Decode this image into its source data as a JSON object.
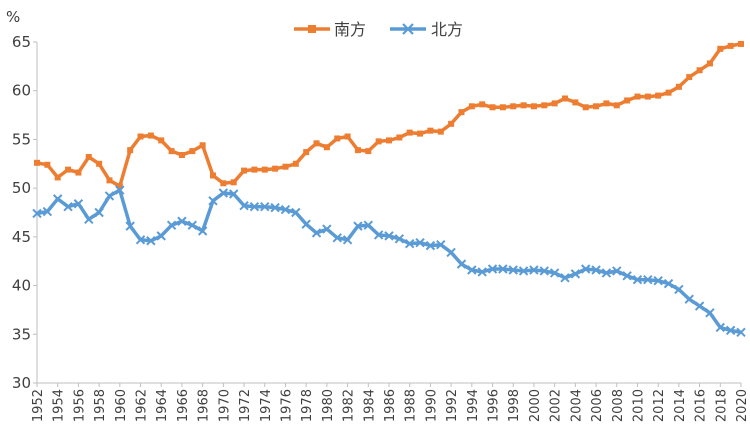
{
  "chart_data": {
    "type": "line",
    "title": "",
    "unit_label": "%",
    "xlabel": "",
    "ylabel": "",
    "ylim": [
      30,
      65
    ],
    "yticks": [
      30,
      35,
      40,
      45,
      50,
      55,
      60,
      65
    ],
    "xlim": [
      1952,
      2020
    ],
    "xticks": [
      1952,
      1954,
      1956,
      1958,
      1960,
      1962,
      1964,
      1966,
      1968,
      1970,
      1972,
      1974,
      1976,
      1978,
      1980,
      1982,
      1984,
      1986,
      1988,
      1990,
      1992,
      1994,
      1996,
      1998,
      2000,
      2002,
      2004,
      2006,
      2008,
      2010,
      2012,
      2014,
      2016,
      2018,
      2020
    ],
    "grid": false,
    "legend_position": "top-center",
    "x": [
      1952,
      1953,
      1954,
      1955,
      1956,
      1957,
      1958,
      1959,
      1960,
      1961,
      1962,
      1963,
      1964,
      1965,
      1966,
      1967,
      1968,
      1969,
      1970,
      1971,
      1972,
      1973,
      1974,
      1975,
      1976,
      1977,
      1978,
      1979,
      1980,
      1981,
      1982,
      1983,
      1984,
      1985,
      1986,
      1987,
      1988,
      1989,
      1990,
      1991,
      1992,
      1993,
      1994,
      1995,
      1996,
      1997,
      1998,
      1999,
      2000,
      2001,
      2002,
      2003,
      2004,
      2005,
      2006,
      2007,
      2008,
      2009,
      2010,
      2011,
      2012,
      2013,
      2014,
      2015,
      2016,
      2017,
      2018,
      2019,
      2020
    ],
    "series": [
      {
        "name": "南方",
        "color": "#ED7D31",
        "marker": "square",
        "values": [
          52.6,
          52.4,
          51.1,
          51.9,
          51.6,
          53.2,
          52.5,
          50.8,
          50.2,
          53.9,
          55.3,
          55.4,
          54.9,
          53.8,
          53.4,
          53.8,
          54.4,
          51.3,
          50.5,
          50.6,
          51.8,
          51.9,
          51.9,
          52.0,
          52.2,
          52.5,
          53.7,
          54.6,
          54.2,
          55.1,
          55.3,
          53.9,
          53.8,
          54.8,
          54.9,
          55.2,
          55.7,
          55.6,
          55.9,
          55.8,
          56.6,
          57.8,
          58.4,
          58.6,
          58.3,
          58.3,
          58.4,
          58.5,
          58.4,
          58.5,
          58.7,
          59.2,
          58.8,
          58.3,
          58.4,
          58.7,
          58.5,
          59.0,
          59.4,
          59.4,
          59.5,
          59.8,
          60.4,
          61.4,
          62.1,
          62.8,
          64.3,
          64.6,
          64.8
        ]
      },
      {
        "name": "北方",
        "color": "#5B9BD5",
        "marker": "x",
        "values": [
          47.4,
          47.6,
          48.9,
          48.1,
          48.4,
          46.8,
          47.5,
          49.2,
          49.8,
          46.1,
          44.7,
          44.6,
          45.1,
          46.2,
          46.6,
          46.2,
          45.6,
          48.7,
          49.5,
          49.4,
          48.2,
          48.1,
          48.1,
          48.0,
          47.8,
          47.5,
          46.3,
          45.4,
          45.8,
          44.9,
          44.7,
          46.1,
          46.2,
          45.2,
          45.1,
          44.8,
          44.3,
          44.4,
          44.1,
          44.2,
          43.4,
          42.2,
          41.6,
          41.4,
          41.7,
          41.7,
          41.6,
          41.5,
          41.6,
          41.5,
          41.3,
          40.8,
          41.2,
          41.7,
          41.6,
          41.3,
          41.5,
          41.0,
          40.6,
          40.6,
          40.5,
          40.2,
          39.6,
          38.6,
          37.9,
          37.2,
          35.7,
          35.4,
          35.2
        ]
      }
    ]
  }
}
